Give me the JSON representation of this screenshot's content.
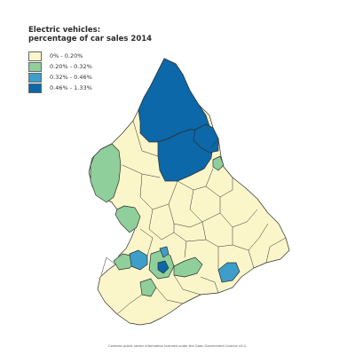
{
  "title_lines": [
    "Electric vehicles:",
    "percentage of car sales 2014"
  ],
  "legend": [
    {
      "label": "0% - 0.20%",
      "color": "#fbf6c9"
    },
    {
      "label": "0.20% - 0.32%",
      "color": "#8fcf9b"
    },
    {
      "label": "0.32% - 0.46%",
      "color": "#3e9ec9"
    },
    {
      "label": "0.46% - 1.33%",
      "color": "#0c68a8"
    }
  ],
  "credit": "Contains public sector information licensed under the Open Government Licence v3.0."
}
